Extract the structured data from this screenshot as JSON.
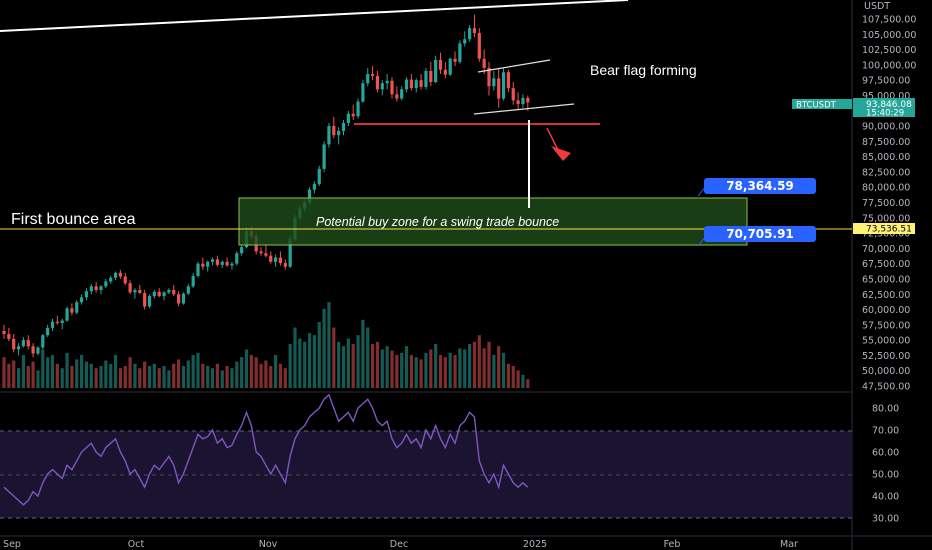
{
  "chart_data": {
    "type": "candlestick",
    "symbol": "BTCUSDT",
    "currency": "USDT",
    "price_axis": {
      "min": 47500,
      "max": 107500,
      "ticks": [
        "107,500.00",
        "105,000.00",
        "102,500.00",
        "100,000.00",
        "97,500.00",
        "95,000.00",
        "92,500.00",
        "90,000.00",
        "87,500.00",
        "85,000.00",
        "82,500.00",
        "80,000.00",
        "77,500.00",
        "75,000.00",
        "72,500.00",
        "70,000.00",
        "67,500.00",
        "65,000.00",
        "62,500.00",
        "60,000.00",
        "57,500.00",
        "55,000.00",
        "52,500.00",
        "50,000.00",
        "47,500.00"
      ]
    },
    "rsi_axis": {
      "ticks": [
        "80.00",
        "70.00",
        "60.00",
        "50.00",
        "40.00",
        "30.00"
      ],
      "overbought": 70,
      "middle": 50,
      "oversold": 30
    },
    "time_labels": [
      "Sep",
      "Oct",
      "Nov",
      "Dec",
      "2025",
      "Feb",
      "Mar"
    ],
    "price_labels": {
      "symbol_label": "BTCUSDT",
      "last_price": "93,846.08",
      "countdown": "15:40:29",
      "horizontal_line_price": "73,536.51"
    },
    "zone_labels": {
      "upper": "78,364.59",
      "lower": "70,705.91"
    },
    "annotations": {
      "bear_flag": "Bear flag forming",
      "first_bounce": "First bounce area",
      "buy_zone": "Potential buy zone for a swing trade bounce"
    },
    "zone": {
      "top": 78364.59,
      "bottom": 70705.91
    },
    "support_line": 90700,
    "horizontal_line": 73536.51,
    "colors": {
      "up": "#26a69a",
      "down": "#ef5350",
      "rsi": "#7e57c2",
      "zone_fill": "#1f4d1a",
      "zone_border": "#8bc34a",
      "label_blue": "#2962ff",
      "price_tag": "#26a69a",
      "hline_tag": "#fff176"
    },
    "candles": [
      [
        56500,
        57500,
        55200,
        56000
      ],
      [
        56000,
        57000,
        54800,
        55200
      ],
      [
        55200,
        56000,
        53000,
        53500
      ],
      [
        53500,
        54500,
        52500,
        54000
      ],
      [
        54000,
        55500,
        53800,
        55000
      ],
      [
        55000,
        55800,
        53500,
        54000
      ],
      [
        54000,
        54500,
        52200,
        52800
      ],
      [
        52800,
        54000,
        52500,
        53800
      ],
      [
        53800,
        56000,
        53500,
        55800
      ],
      [
        55800,
        57500,
        55500,
        57000
      ],
      [
        57000,
        58500,
        56500,
        58000
      ],
      [
        58000,
        59000,
        57500,
        57800
      ],
      [
        57800,
        58500,
        56800,
        58200
      ],
      [
        58200,
        60500,
        58000,
        60200
      ],
      [
        60200,
        61000,
        59000,
        59500
      ],
      [
        59500,
        61500,
        59200,
        61200
      ],
      [
        61200,
        62500,
        60800,
        62000
      ],
      [
        62000,
        63500,
        61500,
        63000
      ],
      [
        63000,
        64200,
        62500,
        63800
      ],
      [
        63800,
        64500,
        62800,
        63200
      ],
      [
        63200,
        64000,
        62500,
        63800
      ],
      [
        63800,
        65000,
        63500,
        64600
      ],
      [
        64600,
        65500,
        64200,
        65200
      ],
      [
        65200,
        66200,
        64800,
        66000
      ],
      [
        66000,
        66500,
        65000,
        65400
      ],
      [
        65400,
        66000,
        64000,
        64300
      ],
      [
        64300,
        64800,
        62500,
        62800
      ],
      [
        62800,
        63500,
        61800,
        63200
      ],
      [
        63200,
        64000,
        62500,
        62700
      ],
      [
        62700,
        63200,
        60000,
        60500
      ],
      [
        60500,
        62500,
        60200,
        62200
      ],
      [
        62200,
        63200,
        61800,
        62900
      ],
      [
        62900,
        63500,
        62000,
        62200
      ],
      [
        62200,
        63000,
        61500,
        62800
      ],
      [
        62800,
        63500,
        62500,
        63200
      ],
      [
        63200,
        64000,
        62200,
        62500
      ],
      [
        62500,
        63000,
        60500,
        61000
      ],
      [
        61000,
        62800,
        60800,
        62600
      ],
      [
        62600,
        64200,
        62400,
        63800
      ],
      [
        63800,
        66000,
        63500,
        65500
      ],
      [
        65500,
        67800,
        65200,
        67500
      ],
      [
        67500,
        68500,
        66500,
        67000
      ],
      [
        67000,
        68000,
        66200,
        67800
      ],
      [
        67800,
        68500,
        67200,
        68200
      ],
      [
        68200,
        68800,
        67000,
        67300
      ],
      [
        67300,
        68000,
        66800,
        67800
      ],
      [
        67800,
        68500,
        67000,
        67200
      ],
      [
        67200,
        67800,
        66500,
        67500
      ],
      [
        67500,
        69500,
        67200,
        69200
      ],
      [
        69200,
        70500,
        68800,
        70200
      ],
      [
        70200,
        73500,
        70000,
        72800
      ],
      [
        72800,
        73600,
        71500,
        72000
      ],
      [
        72000,
        72500,
        69000,
        69500
      ],
      [
        69500,
        70200,
        68800,
        69200
      ],
      [
        69200,
        70500,
        68500,
        68800
      ],
      [
        68800,
        69500,
        67500,
        67800
      ],
      [
        67800,
        69000,
        67000,
        68500
      ],
      [
        68500,
        69500,
        67200,
        67600
      ],
      [
        67600,
        68200,
        66500,
        67000
      ],
      [
        67000,
        72000,
        66800,
        71500
      ],
      [
        71500,
        75500,
        71200,
        75000
      ],
      [
        75000,
        77000,
        74500,
        76500
      ],
      [
        76500,
        78000,
        76000,
        77500
      ],
      [
        77500,
        80000,
        77200,
        79600
      ],
      [
        79600,
        81000,
        79000,
        80500
      ],
      [
        80500,
        83500,
        80200,
        83000
      ],
      [
        83000,
        87500,
        82500,
        87000
      ],
      [
        87000,
        90500,
        86500,
        90000
      ],
      [
        90000,
        91500,
        88000,
        88500
      ],
      [
        88500,
        89800,
        87000,
        89200
      ],
      [
        89200,
        91000,
        88500,
        90500
      ],
      [
        90500,
        92500,
        90000,
        92000
      ],
      [
        92000,
        93500,
        91000,
        91600
      ],
      [
        91600,
        94500,
        91200,
        94000
      ],
      [
        94000,
        97500,
        93800,
        97000
      ],
      [
        97000,
        99500,
        96500,
        98500
      ],
      [
        98500,
        99800,
        97500,
        98200
      ],
      [
        98200,
        99000,
        95500,
        96000
      ],
      [
        96000,
        97500,
        95000,
        97000
      ],
      [
        97000,
        98500,
        96000,
        97400
      ],
      [
        97400,
        98000,
        94500,
        95200
      ],
      [
        95200,
        96500,
        94000,
        94500
      ],
      [
        94500,
        96500,
        94200,
        96000
      ],
      [
        96000,
        98000,
        95500,
        97600
      ],
      [
        97600,
        98500,
        95800,
        96200
      ],
      [
        96200,
        97800,
        95500,
        97500
      ],
      [
        97500,
        98500,
        96000,
        96400
      ],
      [
        96400,
        99500,
        96000,
        99000
      ],
      [
        99000,
        100500,
        96500,
        97200
      ],
      [
        97200,
        101500,
        97000,
        100800
      ],
      [
        100800,
        102000,
        98500,
        99200
      ],
      [
        99200,
        100500,
        97800,
        98400
      ],
      [
        98400,
        101200,
        98200,
        101000
      ],
      [
        101000,
        102200,
        99800,
        100500
      ],
      [
        100500,
        104000,
        100200,
        103500
      ],
      [
        103500,
        105500,
        103000,
        104200
      ],
      [
        104200,
        106500,
        103800,
        106000
      ],
      [
        106000,
        108200,
        104500,
        105200
      ],
      [
        105200,
        106000,
        100500,
        101000
      ],
      [
        101000,
        102500,
        98500,
        99500
      ],
      [
        99500,
        100500,
        95000,
        96500
      ],
      [
        96500,
        99000,
        95800,
        97800
      ],
      [
        97800,
        99500,
        93000,
        94500
      ],
      [
        94500,
        99500,
        94200,
        98800
      ],
      [
        98800,
        99200,
        95500,
        96200
      ],
      [
        96200,
        97200,
        93500,
        94200
      ],
      [
        94200,
        95500,
        92800,
        93600
      ],
      [
        93600,
        95200,
        93000,
        94600
      ],
      [
        94600,
        95000,
        92500,
        93846
      ]
    ],
    "volumes": [
      0.28,
      0.22,
      0.25,
      0.18,
      0.3,
      0.2,
      0.24,
      0.16,
      0.35,
      0.28,
      0.3,
      0.22,
      0.18,
      0.32,
      0.2,
      0.26,
      0.3,
      0.24,
      0.22,
      0.18,
      0.2,
      0.25,
      0.22,
      0.3,
      0.18,
      0.2,
      0.28,
      0.22,
      0.18,
      0.24,
      0.2,
      0.22,
      0.18,
      0.2,
      0.16,
      0.22,
      0.26,
      0.2,
      0.25,
      0.3,
      0.32,
      0.22,
      0.2,
      0.18,
      0.22,
      0.16,
      0.2,
      0.18,
      0.24,
      0.28,
      0.35,
      0.3,
      0.28,
      0.22,
      0.25,
      0.2,
      0.3,
      0.22,
      0.18,
      0.4,
      0.55,
      0.45,
      0.42,
      0.5,
      0.48,
      0.6,
      0.72,
      0.78,
      0.55,
      0.42,
      0.38,
      0.45,
      0.4,
      0.48,
      0.62,
      0.55,
      0.4,
      0.42,
      0.35,
      0.38,
      0.34,
      0.3,
      0.32,
      0.38,
      0.3,
      0.28,
      0.26,
      0.32,
      0.35,
      0.4,
      0.3,
      0.28,
      0.32,
      0.3,
      0.36,
      0.35,
      0.4,
      0.42,
      0.48,
      0.36,
      0.42,
      0.3,
      0.38,
      0.32,
      0.22,
      0.2,
      0.16,
      0.12,
      0.08
    ],
    "rsi": [
      44,
      42,
      40,
      38,
      36,
      38,
      42,
      40,
      46,
      50,
      52,
      50,
      48,
      54,
      52,
      56,
      60,
      62,
      64,
      60,
      58,
      62,
      64,
      66,
      60,
      56,
      50,
      52,
      48,
      44,
      50,
      54,
      52,
      55,
      58,
      54,
      46,
      50,
      56,
      62,
      68,
      66,
      67,
      70,
      64,
      66,
      62,
      63,
      68,
      72,
      78,
      72,
      60,
      58,
      54,
      50,
      54,
      50,
      46,
      58,
      66,
      70,
      72,
      76,
      78,
      80,
      84,
      86,
      80,
      74,
      76,
      78,
      74,
      80,
      82,
      84,
      80,
      74,
      72,
      74,
      66,
      62,
      64,
      68,
      64,
      66,
      62,
      70,
      66,
      72,
      66,
      62,
      68,
      64,
      72,
      74,
      78,
      76,
      56,
      50,
      46,
      50,
      44,
      54,
      50,
      46,
      44,
      46,
      44
    ]
  }
}
